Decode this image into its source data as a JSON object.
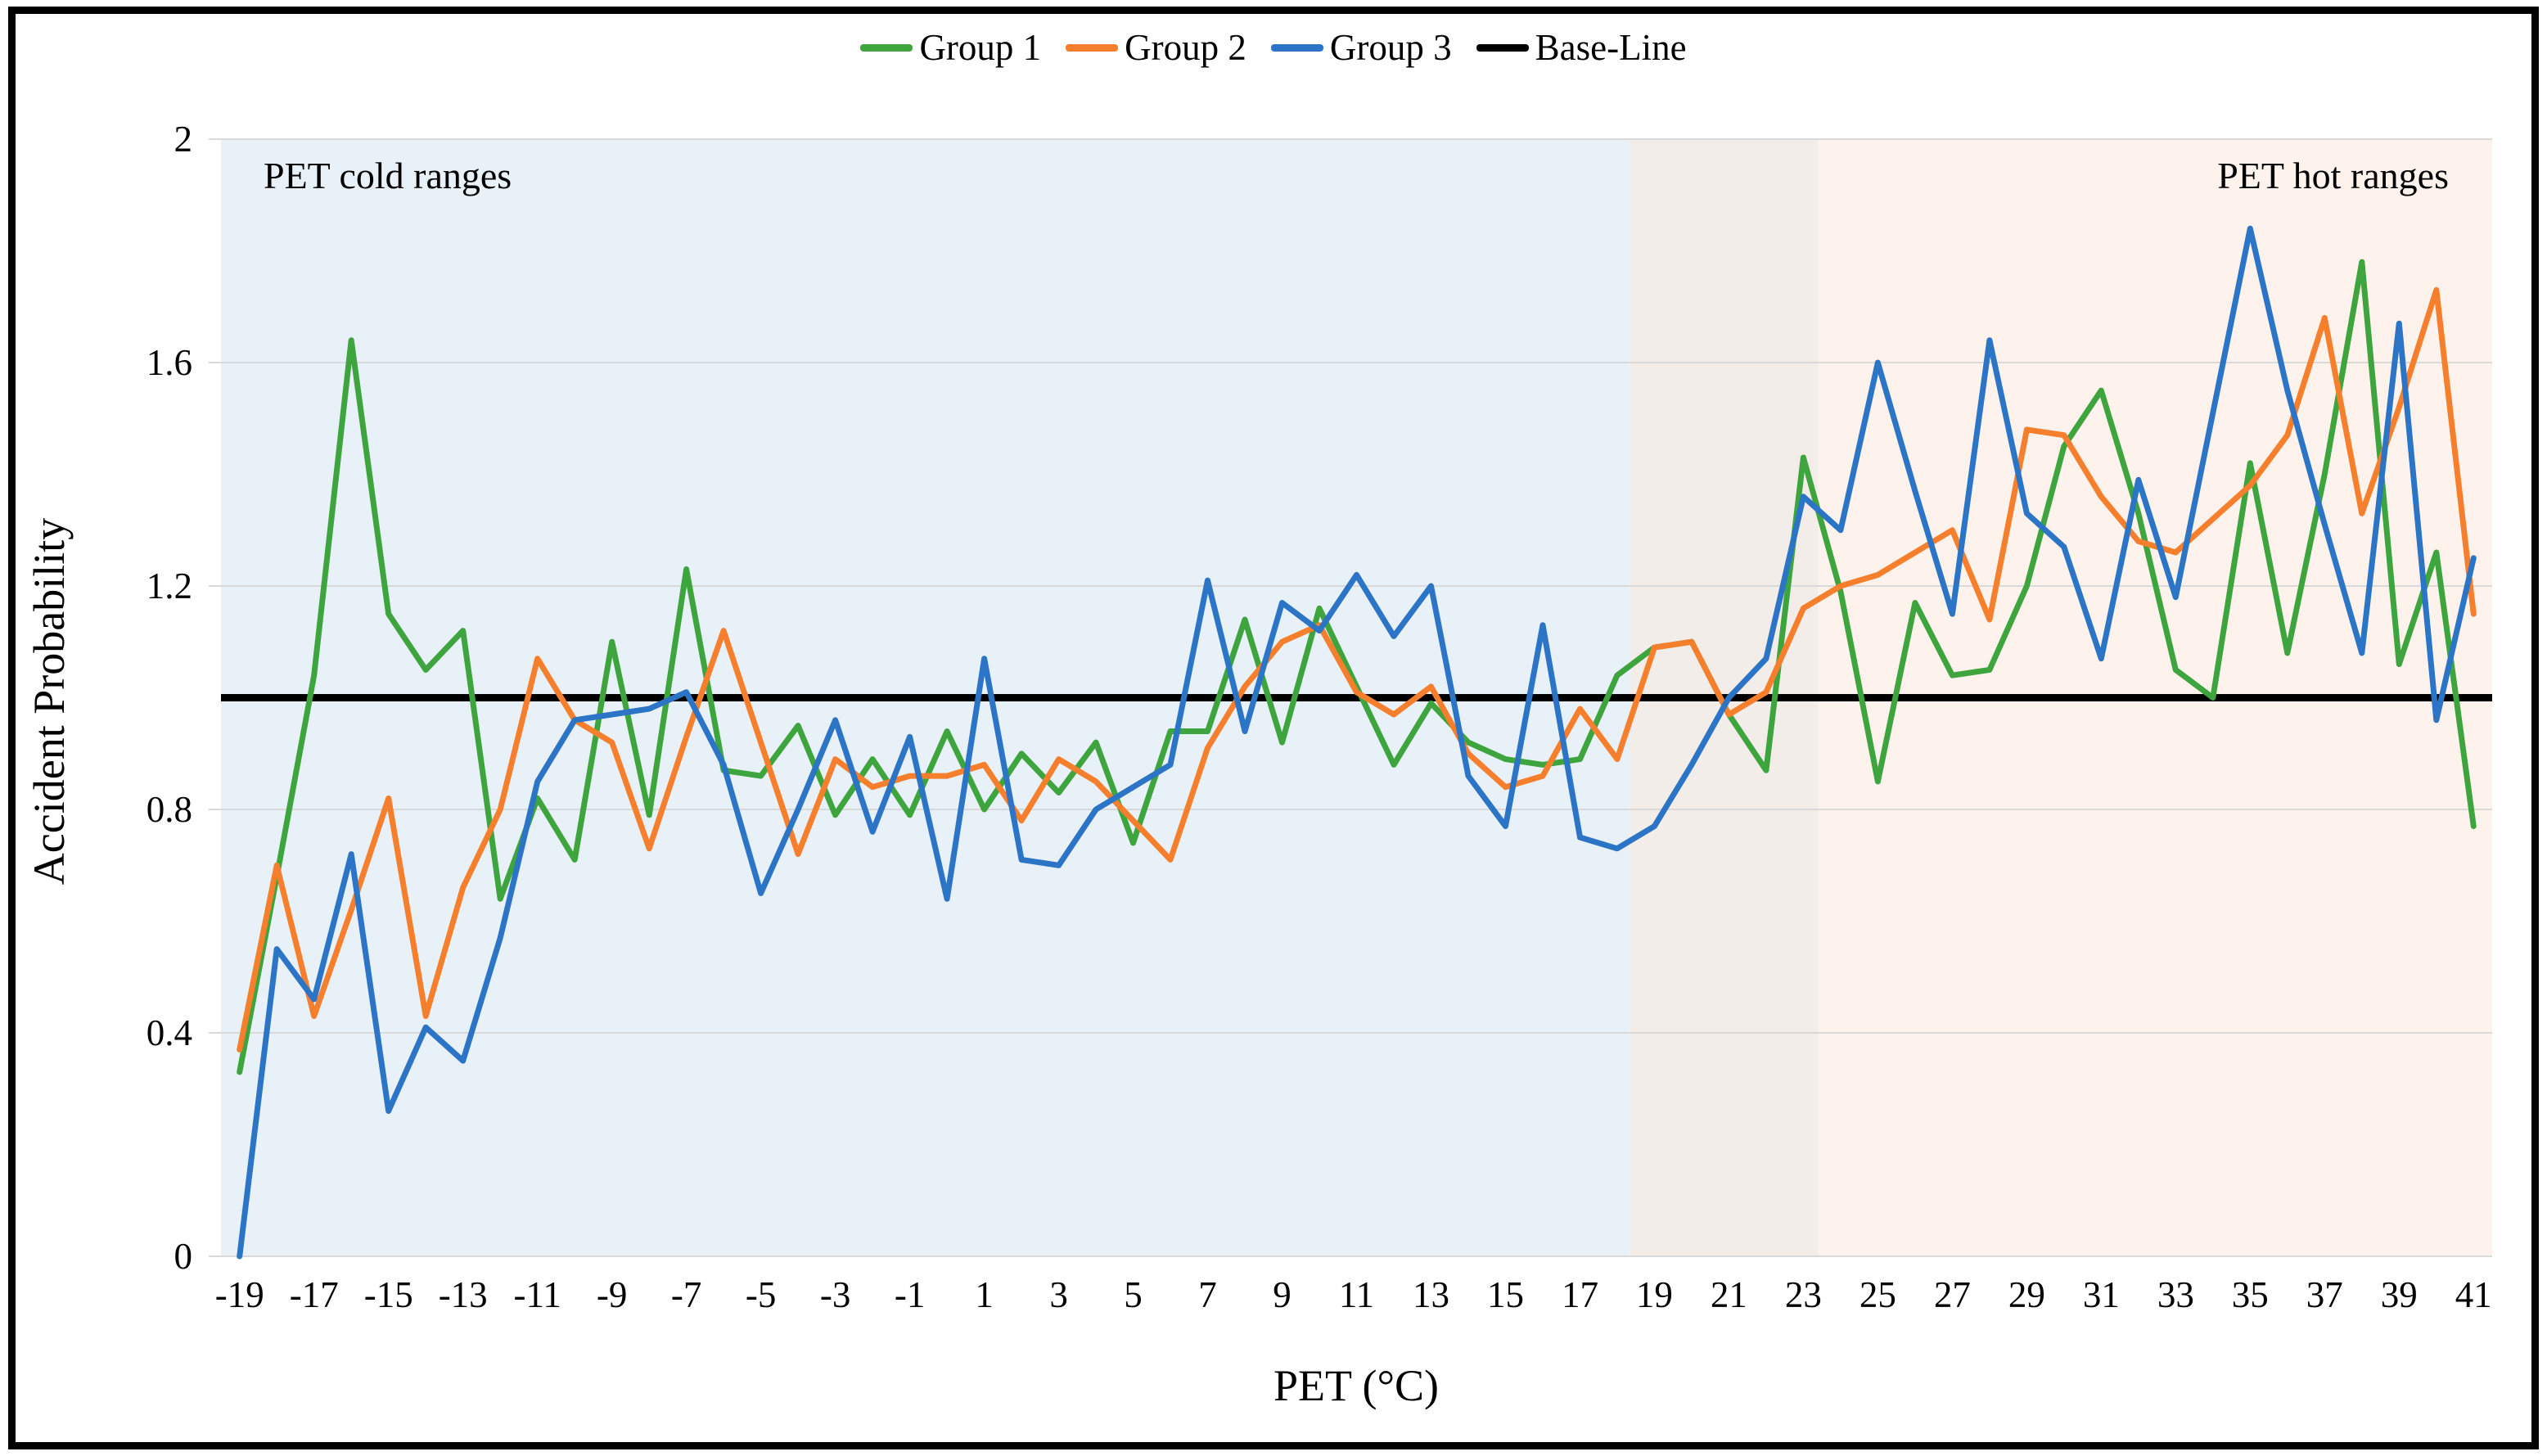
{
  "chart_data": {
    "type": "line",
    "title": "",
    "xlabel": "PET (°C)",
    "ylabel": "Accident Probability",
    "xlim": [
      -19.5,
      41.5
    ],
    "ylim": [
      0,
      2
    ],
    "grid": "horizontal",
    "legend_position": "top",
    "gridline_color": "#D9D9D9",
    "x_ticks": [
      -19,
      -17,
      -15,
      -13,
      -11,
      -9,
      -7,
      -5,
      -3,
      -1,
      1,
      3,
      5,
      7,
      9,
      11,
      13,
      15,
      17,
      19,
      21,
      23,
      25,
      27,
      29,
      31,
      33,
      35,
      37,
      39,
      41
    ],
    "y_ticks": [
      0,
      0.4,
      0.8,
      1.2,
      1.6,
      2
    ],
    "y_tick_labels": [
      "0",
      "0.4",
      "0.8",
      "1.2",
      "1.6",
      "2"
    ],
    "x": [
      -19,
      -18,
      -17,
      -16,
      -15,
      -14,
      -13,
      -12,
      -11,
      -10,
      -9,
      -8,
      -7,
      -6,
      -5,
      -4,
      -3,
      -2,
      -1,
      0,
      1,
      2,
      3,
      4,
      5,
      6,
      7,
      8,
      9,
      10,
      11,
      12,
      13,
      14,
      15,
      16,
      17,
      18,
      19,
      20,
      21,
      22,
      23,
      24,
      25,
      26,
      27,
      28,
      29,
      30,
      31,
      32,
      33,
      34,
      35,
      36,
      37,
      38,
      39,
      40,
      41
    ],
    "series": [
      {
        "name": "Group 1",
        "color": "#3EA43E",
        "values": [
          0.33,
          0.68,
          1.04,
          1.64,
          1.15,
          1.05,
          1.12,
          0.64,
          0.82,
          0.71,
          1.1,
          0.79,
          1.23,
          0.87,
          0.86,
          0.95,
          0.79,
          0.89,
          0.79,
          0.94,
          0.8,
          0.9,
          0.83,
          0.92,
          0.74,
          0.94,
          0.94,
          1.14,
          0.92,
          1.16,
          1.02,
          0.88,
          0.99,
          0.92,
          0.89,
          0.88,
          0.89,
          1.04,
          1.09,
          1.1,
          0.97,
          0.87,
          1.43,
          1.19,
          0.85,
          1.17,
          1.04,
          1.05,
          1.2,
          1.45,
          1.55,
          1.33,
          1.05,
          1.0,
          1.42,
          1.08,
          1.4,
          1.78,
          1.06,
          1.26,
          0.77
        ]
      },
      {
        "name": "Group 2",
        "color": "#F57F2C",
        "values": [
          0.37,
          0.7,
          0.43,
          0.62,
          0.82,
          0.43,
          0.66,
          0.8,
          1.07,
          0.96,
          0.92,
          0.73,
          0.93,
          1.12,
          0.92,
          0.72,
          0.89,
          0.84,
          0.86,
          0.86,
          0.88,
          0.78,
          0.89,
          0.85,
          0.78,
          0.71,
          0.91,
          1.02,
          1.1,
          1.13,
          1.01,
          0.97,
          1.02,
          0.9,
          0.84,
          0.86,
          0.98,
          0.89,
          1.09,
          1.1,
          0.97,
          1.01,
          1.16,
          1.2,
          1.22,
          1.26,
          1.3,
          1.14,
          1.48,
          1.47,
          1.36,
          1.28,
          1.26,
          1.32,
          1.38,
          1.47,
          1.68,
          1.33,
          1.52,
          1.73,
          1.15
        ]
      },
      {
        "name": "Group 3",
        "color": "#2C74C5",
        "values": [
          0.0,
          0.55,
          0.46,
          0.72,
          0.26,
          0.41,
          0.35,
          0.57,
          0.85,
          0.96,
          0.97,
          0.98,
          1.01,
          0.88,
          0.65,
          0.8,
          0.96,
          0.76,
          0.93,
          0.64,
          1.07,
          0.71,
          0.7,
          0.8,
          0.84,
          0.88,
          1.21,
          0.94,
          1.17,
          1.12,
          1.22,
          1.11,
          1.2,
          0.86,
          0.77,
          1.13,
          0.75,
          0.73,
          0.77,
          0.88,
          1.0,
          1.07,
          1.36,
          1.3,
          1.6,
          1.37,
          1.15,
          1.64,
          1.33,
          1.27,
          1.07,
          1.39,
          1.18,
          1.51,
          1.84,
          1.55,
          1.31,
          1.08,
          1.67,
          0.96,
          1.25
        ]
      }
    ],
    "baseline": {
      "name": "Base-Line",
      "color": "#000000",
      "value": 1
    },
    "regions": [
      {
        "label": "PET cold ranges",
        "x0": -19.5,
        "x1": 18.35,
        "color": "#E9F1F8"
      },
      {
        "label": "",
        "x0": 18.35,
        "x1": 23.4,
        "color": "#F2EDE8"
      },
      {
        "label": "PET hot ranges",
        "x0": 23.4,
        "x1": 41.5,
        "color": "#FDF3EC"
      }
    ],
    "legend": [
      {
        "label": "Group 1",
        "color": "#3EA43E"
      },
      {
        "label": "Group 2",
        "color": "#F57F2C"
      },
      {
        "label": "Group 3",
        "color": "#2C74C5"
      },
      {
        "label": "Base-Line",
        "color": "#000000"
      }
    ]
  }
}
